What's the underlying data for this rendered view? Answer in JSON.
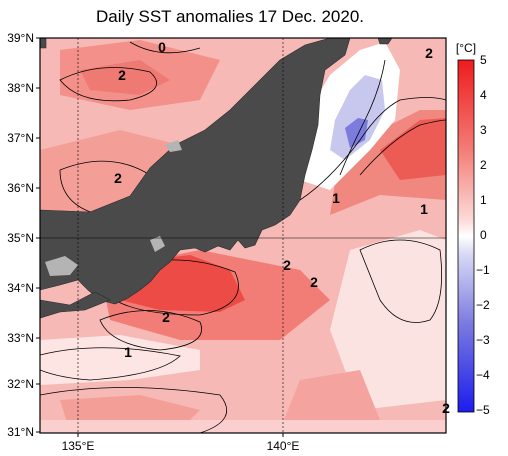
{
  "title": "Daily SST anomalies 17 Dec. 2020.",
  "lat_ticks": [
    "39°N",
    "38°N",
    "37°N",
    "36°N",
    "35°N",
    "34°N",
    "33°N",
    "32°N",
    "31°N"
  ],
  "lon_ticks": [
    "135°E",
    "140°E"
  ],
  "colorbar": {
    "unit": "[°C]",
    "ticks": [
      "5",
      "4",
      "3",
      "2",
      "1",
      "0",
      "−1",
      "−2",
      "−3",
      "−4",
      "−5"
    ],
    "range": [
      -5,
      5
    ],
    "warm_color": "#ee1c1c",
    "cold_color": "#1c1cee"
  },
  "contour_labels": [
    "0",
    "2",
    "2",
    "2",
    "2",
    "2",
    "2",
    "1",
    "1",
    "1",
    "2"
  ],
  "colors": {
    "land": "#4a4a4a",
    "lake": "#b4b4b4"
  }
}
